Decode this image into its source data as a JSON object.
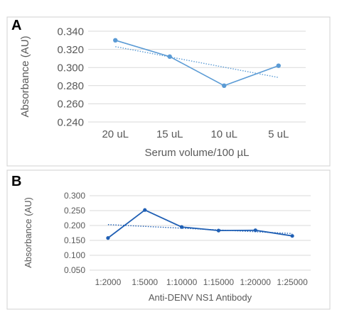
{
  "chart_data": [
    {
      "panel_label": "A",
      "type": "line",
      "xlabel": "Serum volume/100 µL",
      "ylabel": "Absorbance (AU)",
      "categories": [
        "20 uL",
        "15 uL",
        "10 uL",
        "5 uL"
      ],
      "y_ticks": [
        "0.240",
        "0.260",
        "0.280",
        "0.300",
        "0.320",
        "0.340"
      ],
      "ylim": [
        0.24,
        0.34
      ],
      "grid": true,
      "series": [
        {
          "values": [
            0.33,
            0.312,
            0.28,
            0.302
          ],
          "color": "#5b9bd5",
          "style": "solid-markers"
        },
        {
          "values": [
            0.323,
            0.312,
            0.3,
            0.289
          ],
          "color": "#5b9bd5",
          "style": "dotted-trendline"
        }
      ]
    },
    {
      "panel_label": "B",
      "type": "line",
      "xlabel": "Anti-DENV NS1 Antibody",
      "ylabel": "Absorbance (AU)",
      "categories": [
        "1:2000",
        "1:5000",
        "1:10000",
        "1:15000",
        "1:20000",
        "1:25000"
      ],
      "y_ticks": [
        "0.050",
        "0.100",
        "0.150",
        "0.200",
        "0.250",
        "0.300"
      ],
      "ylim": [
        0.05,
        0.3
      ],
      "grid": true,
      "series": [
        {
          "values": [
            0.158,
            0.252,
            0.195,
            0.183,
            0.184,
            0.165
          ],
          "color": "#1f5fb4",
          "style": "solid-markers"
        },
        {
          "values": [
            0.203,
            0.198,
            0.192,
            0.185,
            0.179,
            0.173
          ],
          "color": "#1f5fb4",
          "style": "dotted-trendline"
        }
      ]
    }
  ]
}
